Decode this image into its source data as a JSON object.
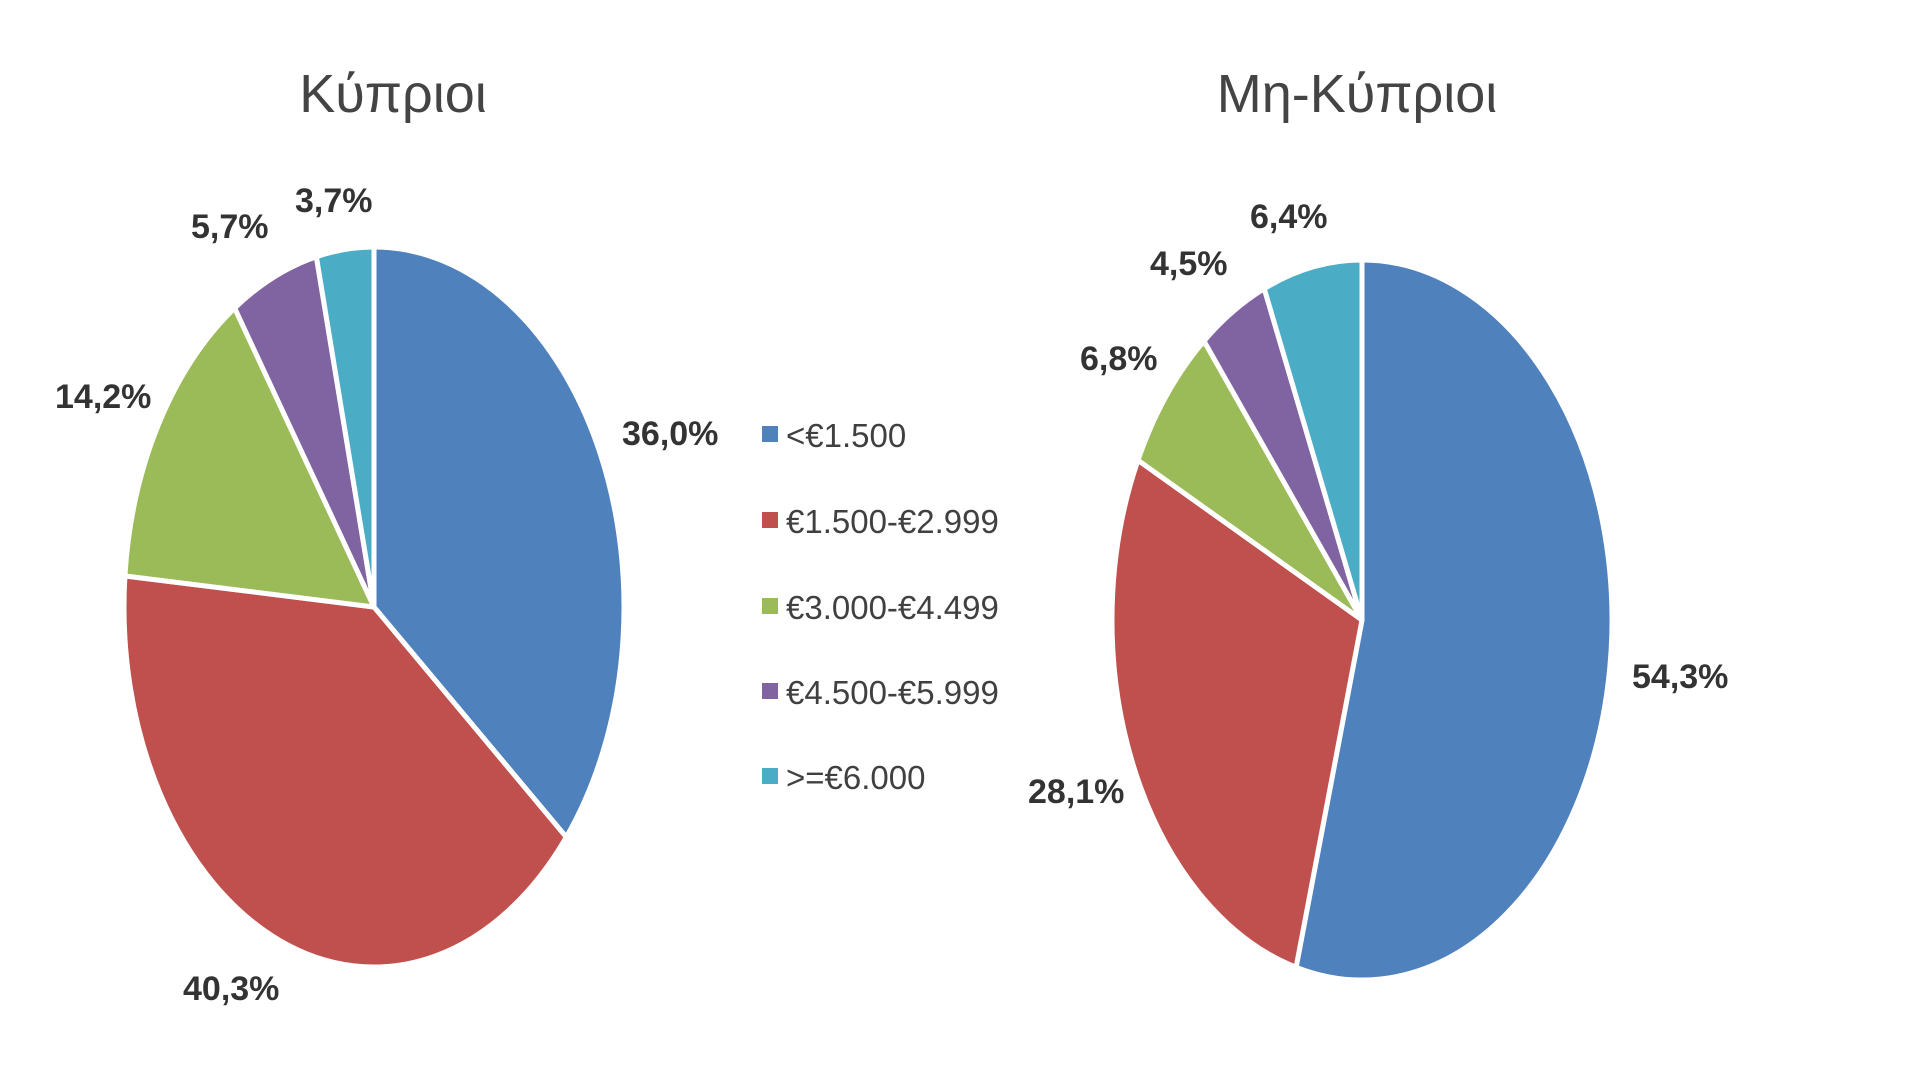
{
  "chart_data": [
    {
      "type": "pie",
      "title": "Κύπριοι",
      "categories": [
        "<€1.500",
        "€1.500-€2.999",
        "€3.000-€4.499",
        "€4.500-€5.999",
        ">=€6.000"
      ],
      "values": [
        36.0,
        40.3,
        14.2,
        5.7,
        3.7
      ],
      "labels": [
        "36,0%",
        "40,3%",
        "14,2%",
        "5,7%",
        "3,7%"
      ]
    },
    {
      "type": "pie",
      "title": "Μη-Κύπριοι",
      "categories": [
        "<€1.500",
        "€1.500-€2.999",
        "€3.000-€4.499",
        "€4.500-€5.999",
        ">=€6.000"
      ],
      "values": [
        54.3,
        28.1,
        6.8,
        4.5,
        6.4
      ],
      "labels": [
        "54,3%",
        "28,1%",
        "6,8%",
        "4,5%",
        "6,4%"
      ]
    }
  ],
  "legend": {
    "placement": "center",
    "items": [
      {
        "label": "<€1.500",
        "color": "#4F81BD"
      },
      {
        "label": "€1.500-€2.999",
        "color": "#C0504D"
      },
      {
        "label": "€3.000-€4.499",
        "color": "#9BBB59"
      },
      {
        "label": "€4.500-€5.999",
        "color": "#8064A2"
      },
      {
        "label": ">=€6.000",
        "color": "#4BACC6"
      }
    ]
  }
}
